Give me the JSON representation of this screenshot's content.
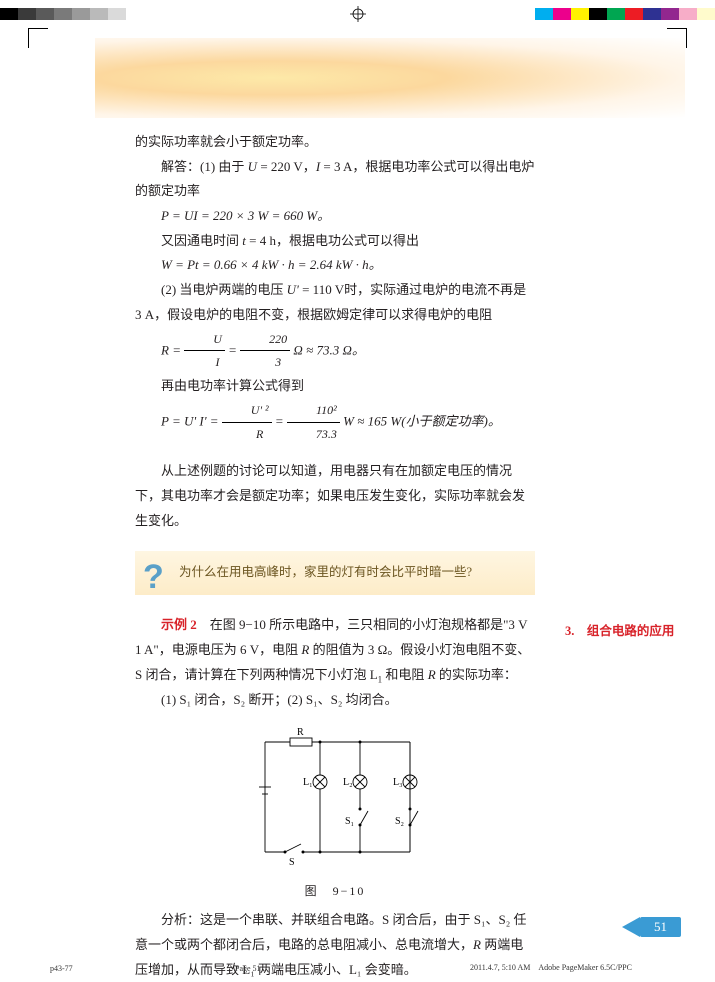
{
  "colorbar": {
    "left": [
      "#000000",
      "#3a3a3a",
      "#5a5a5a",
      "#7a7a7a",
      "#9a9a9a",
      "#bababa",
      "#dadada",
      "#ffffff"
    ],
    "right": [
      "#00aeef",
      "#ec008c",
      "#fff200",
      "#000000",
      "#00a651",
      "#ed1c24",
      "#2e3192",
      "#92278f",
      "#f7adc8",
      "#fffbcc"
    ]
  },
  "text": {
    "p1": "的实际功率就会小于额定功率。",
    "p2_a": "解答：(1) 由于 ",
    "p2_b": "U",
    "p2_c": " = 220 V，",
    "p2_d": "I",
    "p2_e": " = 3 A，根据电功率公式可以得出电炉的额定功率",
    "f1": "P = UI = 220 × 3 W = 660 W。",
    "p3_a": "又因通电时间 ",
    "p3_b": "t",
    "p3_c": " = 4 h，根据电功公式可以得出",
    "f2": "W = Pt = 0.66 × 4 kW · h = 2.64 kW · h。",
    "p4_a": "(2) 当电炉两端的电压 ",
    "p4_b": "U'",
    "p4_c": " = 110 V时，实际通过电炉的电流不再是 3 A，假设电炉的电阻不变，根据欧姆定律可以求得电炉的电阻",
    "f3_a": "R = ",
    "f3_num1": "U",
    "f3_den1": "I",
    "f3_b": " = ",
    "f3_num2": "220",
    "f3_den2": "3",
    "f3_c": " Ω ≈ 73.3 Ω。",
    "p5": "再由电功率计算公式得到",
    "f4_a": "P = U' I' = ",
    "f4_num1": "U' ²",
    "f4_den1": "R",
    "f4_b": " = ",
    "f4_num2": "110²",
    "f4_den2": "73.3",
    "f4_c": " W ≈ 165 W(小于额定功率)。",
    "p6": "从上述例题的讨论可以知道，用电器只有在加额定电压的情况下，其电功率才会是额定功率；如果电压发生变化，实际功率就会发生变化。",
    "question": "为什么在用电高峰时，家里的灯有时会比平时暗一些?",
    "example_label": "示例 2",
    "p7_a": "　在图 9−10 所示电路中，三只相同的小灯泡规格都是\"3 V　1 A\"，电源电压为 6 V，电阻 ",
    "p7_b": "R",
    "p7_c": " 的阻值为 3 Ω。假设小灯泡电阻不变、S 闭合，请计算在下列两种情况下小灯泡 L",
    "p7_d": " 和电阻 ",
    "p7_e": "R",
    "p7_f": " 的实际功率：",
    "p8": "(1) S₁ 闭合，S₂ 断开；(2) S₁、S₂ 均闭合。",
    "figcap": "图　9−10",
    "p9_a": "分析：这是一个串联、并联组合电路。S 闭合后，由于 S₁、S₂ 任意一个或两个都闭合后，电路的总电阻减小、总电流增大，",
    "p9_b": "R",
    "p9_c": " 两端电压增加，从而导致 L₁ 两端电压减小、L₁ 会变暗。",
    "sidebar": "3.　组合电路的应用",
    "pagenum": "51",
    "footer_left": "p43-77",
    "footer_center": "Page 51",
    "footer_right": "2011.4.7, 5:10 AM　Adobe PageMaker 6.5C/PPC"
  },
  "circuit": {
    "labels": {
      "r": "R",
      "l1": "L₁",
      "l2": "L₂",
      "l3": "L₃",
      "s": "S",
      "s1": "S₁",
      "s2": "S₂"
    },
    "stroke": "#000000",
    "strokeWidth": 0.9
  }
}
